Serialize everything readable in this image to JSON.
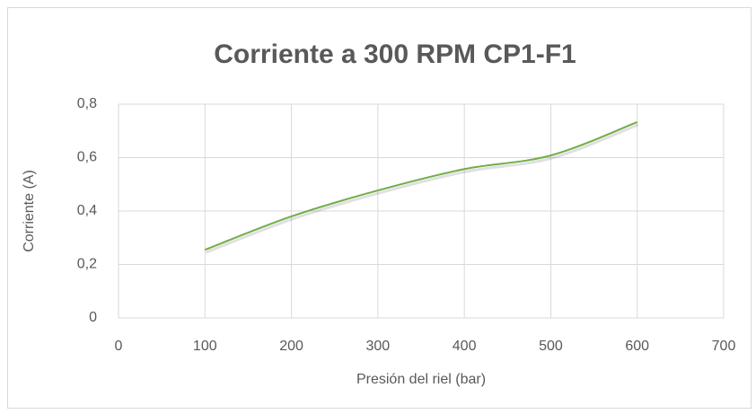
{
  "chart_data": {
    "type": "line",
    "title": "Corriente a 300 RPM CP1-F1",
    "x_label": "Presión del riel (bar)",
    "y_label": "Corriente (A)",
    "x": [
      100,
      200,
      300,
      400,
      500,
      600
    ],
    "series": [
      {
        "name": "Corriente",
        "color": "#70ad47",
        "values": [
          0.255,
          0.38,
          0.477,
          0.557,
          0.608,
          0.733
        ]
      }
    ],
    "xlim": [
      0,
      700
    ],
    "xticks": [
      0,
      100,
      200,
      300,
      400,
      500,
      600,
      700
    ],
    "ylim": [
      0,
      0.8
    ],
    "yticks": [
      0,
      {
        "value": 0.2,
        "label": "0,2"
      },
      {
        "value": 0.4,
        "label": "0,4"
      },
      {
        "value": 0.6,
        "label": "0,6"
      },
      {
        "value": 0.8,
        "label": "0,8"
      }
    ],
    "grid": true,
    "smooth": true
  }
}
